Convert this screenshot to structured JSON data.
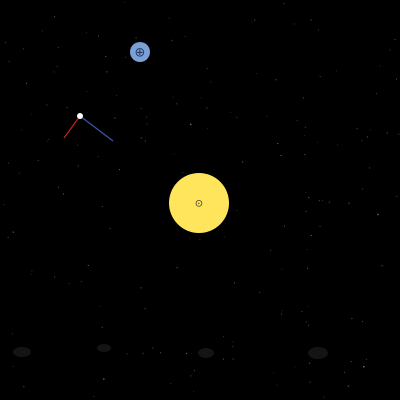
{
  "scene": {
    "background_color": "#000000",
    "star_color": "#9a9a9a"
  },
  "sun": {
    "symbol": "⊙",
    "icon": "sun-icon",
    "fill_color": "#ffe55c",
    "symbol_color": "#333333"
  },
  "earth": {
    "symbol": "⊕",
    "icon": "earth-icon",
    "fill_color": "#7ba0d6",
    "symbol_color": "#233a63"
  },
  "probe": {
    "icon": "probe-icon",
    "body_color": "#ffffff",
    "thrust_vector_color": "#cc2222",
    "velocity_vector_color": "#3a5aa8"
  },
  "bottom_controls": {
    "icons": [
      "control-slot-1-icon",
      "control-slot-2-icon",
      "control-slot-3-icon",
      "control-slot-4-icon"
    ],
    "color": "#141414"
  }
}
